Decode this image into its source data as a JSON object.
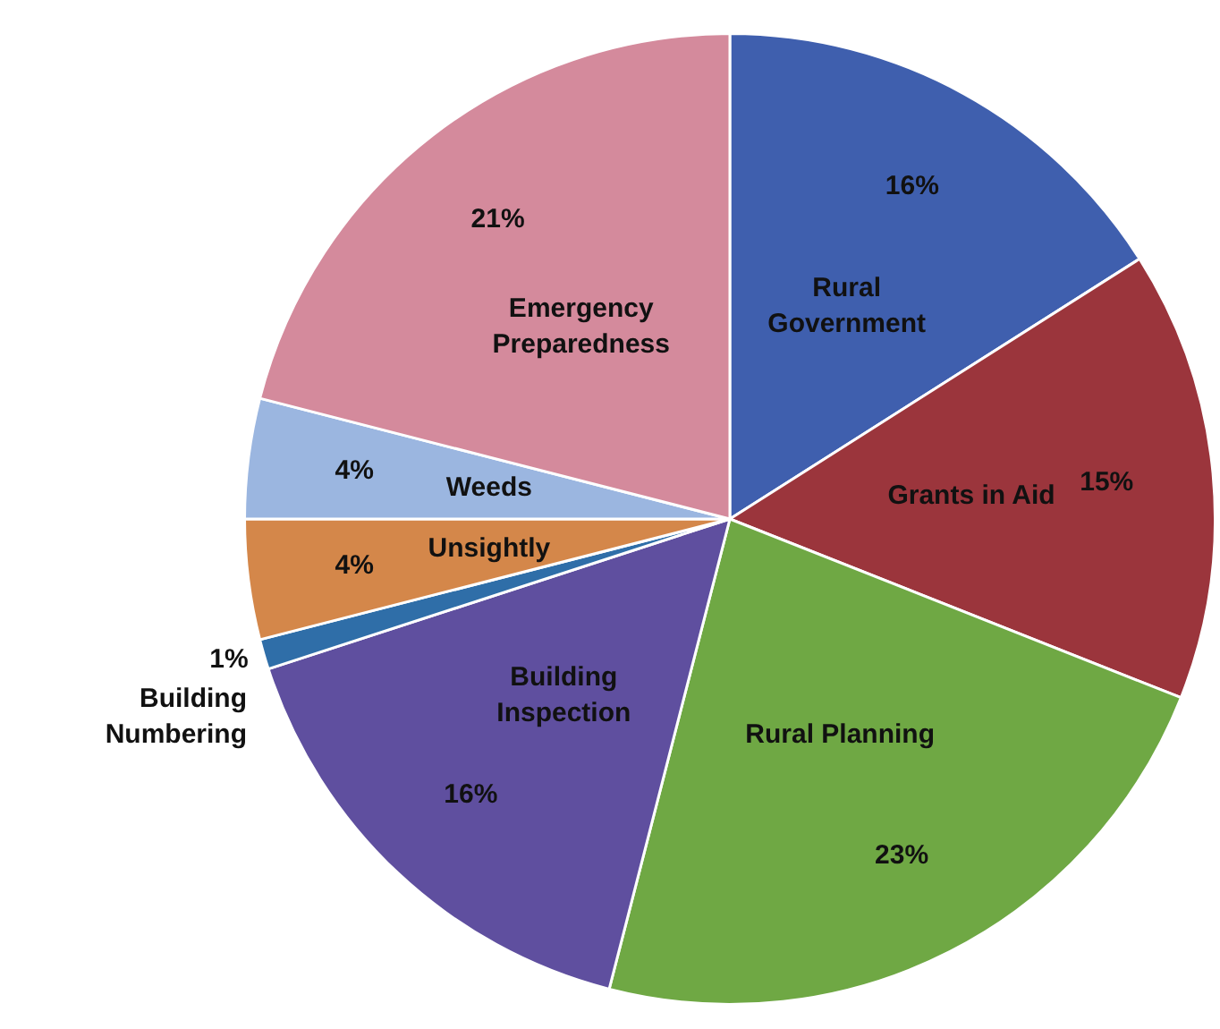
{
  "chart_data": {
    "type": "pie",
    "categories": [
      "Rural Government",
      "Grants in Aid",
      "Rural Planning",
      "Building Inspection",
      "Building Numbering",
      "Unsightly",
      "Weeds",
      "Emergency Preparedness"
    ],
    "values": [
      16,
      15,
      23,
      16,
      1,
      4,
      4,
      21
    ],
    "colors": [
      "#3f5fae",
      "#9b353c",
      "#6fa844",
      "#5f4f9f",
      "#2f6ea8",
      "#d4874a",
      "#9bb6e0",
      "#d48a9c"
    ],
    "value_labels": [
      "16%",
      "15%",
      "23%",
      "16%",
      "1%",
      "4%",
      "4%",
      "21%"
    ],
    "legend": false
  }
}
